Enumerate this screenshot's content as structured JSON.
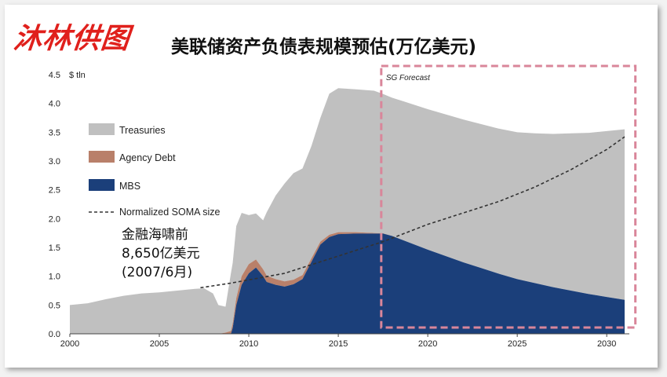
{
  "header": {
    "logo_text": "沐林供图",
    "title": "美联储资产负债表规模预估(万亿美元)"
  },
  "colors": {
    "treasuries": "#c0c0c0",
    "agency_debt": "#b9806a",
    "mbs": "#1b3f7a",
    "soma_line": "#333333",
    "forecast_box": "#d9869a",
    "logo": "#e0201c"
  },
  "chart_data": {
    "type": "area",
    "title": "美联储资产负债表规模预估(万亿美元)",
    "ylabel": "$ tln",
    "xlim": [
      2000,
      2031
    ],
    "ylim": [
      0,
      4.5
    ],
    "x_ticks": [
      2000,
      2005,
      2010,
      2015,
      2020,
      2025,
      2030
    ],
    "y_ticks": [
      "0.0",
      "0.5",
      "1.0",
      "1.5",
      "2.0",
      "2.5",
      "3.0",
      "3.5",
      "4.0",
      "4.5"
    ],
    "legend": [
      "Treasuries",
      "Agency Debt",
      "MBS",
      "Normalized SOMA size"
    ],
    "legend_placement": "left",
    "forecast": {
      "label": "SG Forecast",
      "start": 2017.4,
      "end": 2031.6
    },
    "annotation": [
      "金融海啸前",
      "8,650亿美元",
      "(2007/6月)"
    ],
    "x": [
      2000,
      2001,
      2002,
      2003,
      2004,
      2005,
      2006,
      2007,
      2007.5,
      2008,
      2008.3,
      2008.7,
      2009,
      2009.1,
      2009.3,
      2009.6,
      2010,
      2010.4,
      2010.8,
      2011,
      2011.5,
      2012,
      2012.5,
      2013,
      2013.5,
      2014,
      2014.5,
      2015,
      2016,
      2017,
      2017.5,
      2018,
      2019,
      2020,
      2021,
      2022,
      2023,
      2024,
      2025,
      2026,
      2027,
      2028,
      2029,
      2030,
      2031
    ],
    "series": [
      {
        "name": "MBS",
        "values": [
          0,
          0,
          0,
          0,
          0,
          0,
          0,
          0,
          0,
          0,
          0,
          0,
          0,
          0.1,
          0.5,
          0.85,
          1.05,
          1.15,
          1.0,
          0.9,
          0.85,
          0.82,
          0.86,
          0.95,
          1.25,
          1.55,
          1.68,
          1.73,
          1.74,
          1.74,
          1.74,
          1.7,
          1.58,
          1.46,
          1.35,
          1.24,
          1.14,
          1.04,
          0.95,
          0.88,
          0.81,
          0.75,
          0.69,
          0.64,
          0.59
        ]
      },
      {
        "name": "Agency Debt",
        "values": [
          0,
          0,
          0,
          0,
          0,
          0,
          0,
          0,
          0,
          0,
          0,
          0.02,
          0.05,
          0.08,
          0.12,
          0.15,
          0.16,
          0.14,
          0.12,
          0.11,
          0.1,
          0.09,
          0.08,
          0.07,
          0.06,
          0.05,
          0.04,
          0.035,
          0.025,
          0.01,
          0.005,
          0,
          0,
          0,
          0,
          0,
          0,
          0,
          0,
          0,
          0,
          0,
          0,
          0,
          0
        ]
      },
      {
        "name": "Treasuries",
        "values": [
          0.5,
          0.53,
          0.6,
          0.66,
          0.7,
          0.72,
          0.75,
          0.78,
          0.79,
          0.7,
          0.5,
          0.45,
          1.0,
          1.05,
          1.25,
          1.1,
          0.85,
          0.8,
          0.85,
          1.1,
          1.45,
          1.7,
          1.85,
          1.85,
          1.95,
          2.15,
          2.45,
          2.5,
          2.48,
          2.47,
          2.42,
          2.4,
          2.42,
          2.44,
          2.46,
          2.48,
          2.5,
          2.52,
          2.55,
          2.6,
          2.66,
          2.73,
          2.8,
          2.88,
          2.96
        ]
      },
      {
        "name": "Normalized SOMA size",
        "type": "line",
        "x": [
          2007.3,
          2009,
          2012,
          2015,
          2017.5,
          2020,
          2022,
          2024,
          2026,
          2028,
          2030,
          2031
        ],
        "values": [
          0.8,
          0.88,
          1.05,
          1.35,
          1.6,
          1.9,
          2.1,
          2.3,
          2.55,
          2.85,
          3.2,
          3.42
        ]
      }
    ]
  }
}
